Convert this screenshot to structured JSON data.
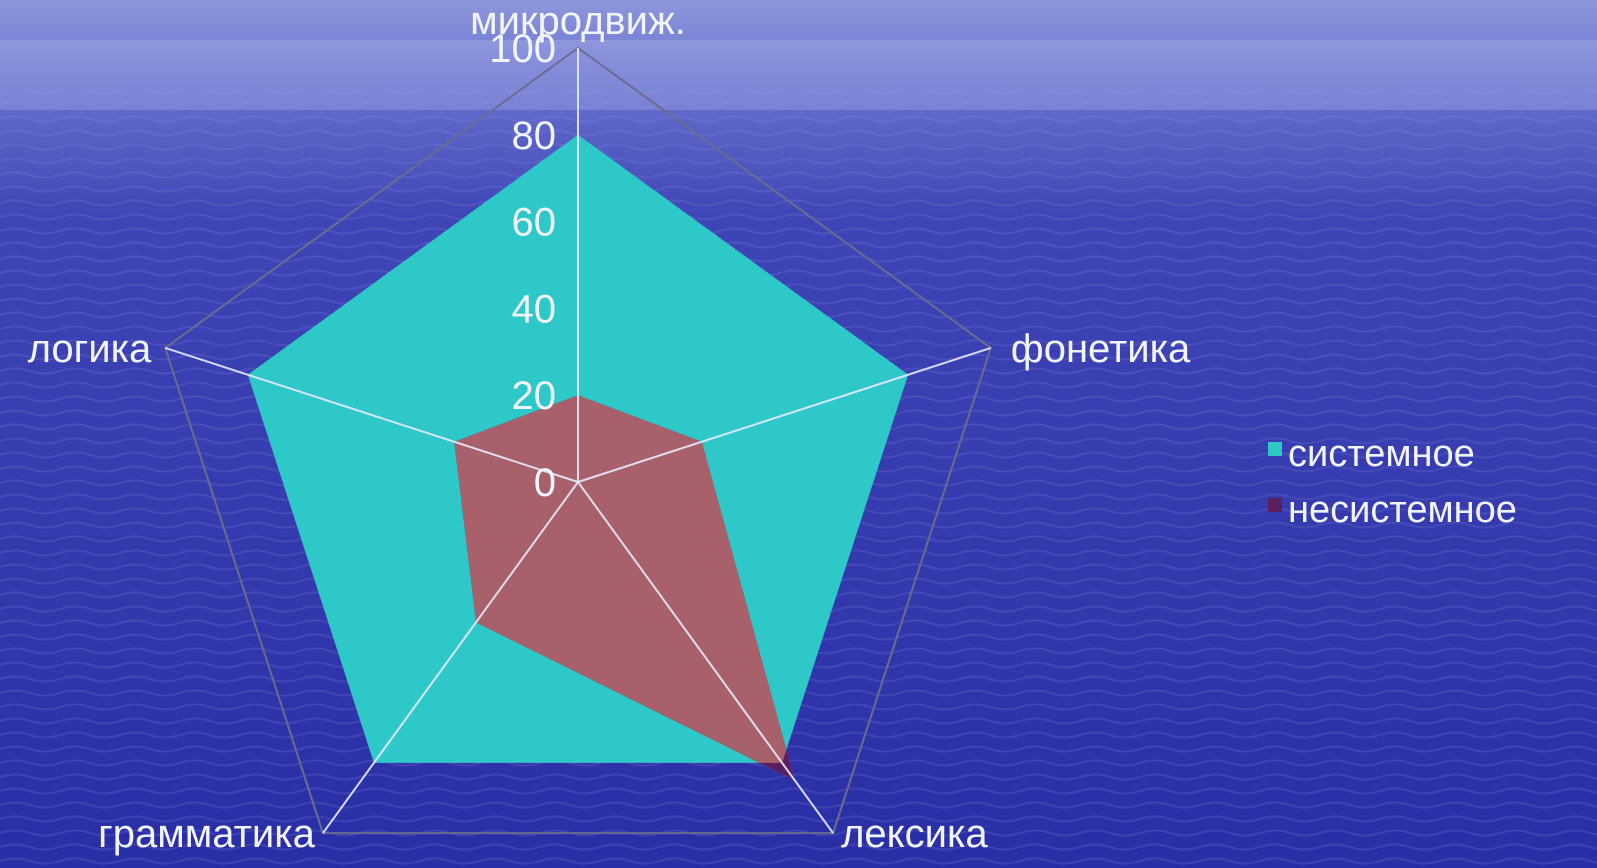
{
  "chart_data": {
    "type": "radar",
    "categories": [
      "микродвиж.",
      "фонетика",
      "лексика",
      "грамматика",
      "логика"
    ],
    "series": [
      {
        "name": "системное",
        "values": [
          80,
          80,
          80,
          80,
          80
        ],
        "color": "#2ec8c8"
      },
      {
        "name": "несистемное",
        "values": [
          20,
          30,
          85,
          40,
          30
        ],
        "color": "#a8606b"
      }
    ],
    "rlim": [
      0,
      100
    ],
    "ticks": [
      0,
      20,
      40,
      60,
      80,
      100
    ],
    "legend_position": "right",
    "grid": true
  },
  "colors": {
    "background": "#2b2fa8",
    "text": "#f2f4ff",
    "overlap": "#5a1f5e"
  }
}
